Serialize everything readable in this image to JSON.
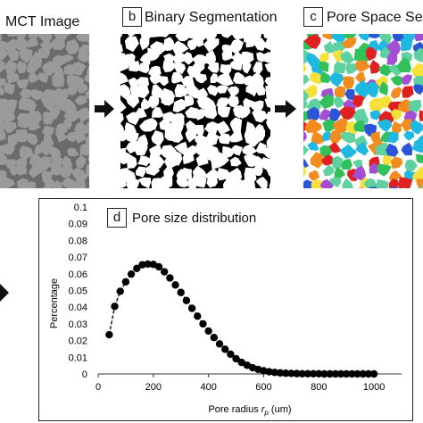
{
  "colors": {
    "micro_bg": "#6b6b6b",
    "micro_grain": "#9a9a9a",
    "binary_bg": "#000000",
    "binary_grain": "#ffffff",
    "pore_palette": [
      "#e02020",
      "#f5e13a",
      "#2a55d6",
      "#1fb8e0",
      "#32c05a",
      "#f28c1e",
      "#a44fd3",
      "#5fd1a0"
    ]
  },
  "panels": {
    "a": {
      "title": "MCT Image"
    },
    "b": {
      "letter": "b",
      "title": "Binary Segmentation"
    },
    "c": {
      "letter": "c",
      "title": "Pore Space Seg"
    }
  },
  "icons": {
    "arrow_ab": "arrow-right-icon",
    "arrow_bc": "arrow-right-icon",
    "arrow_d": "arrow-right-icon"
  },
  "chart_data": {
    "type": "line",
    "letter": "d",
    "title": "Pore size distribution",
    "xlabel_main": "Pore radius ",
    "xlabel_var": "r",
    "xlabel_sub": "p",
    "xlabel_unit": " (um)",
    "ylabel": "Percentage",
    "xlim": [
      0,
      1100
    ],
    "ylim": [
      0,
      0.1
    ],
    "xticks": [
      0,
      200,
      400,
      600,
      800,
      1000
    ],
    "yticks": [
      0,
      0.01,
      0.02,
      0.03,
      0.04,
      0.05,
      0.06,
      0.07,
      0.08,
      0.09,
      0.1
    ],
    "ytick_labels": [
      "0",
      "0.01",
      "0.02",
      "0.03",
      "0.04",
      "0.05",
      "0.06",
      "0.07",
      "0.08",
      "0.09",
      "0.1"
    ],
    "series": [
      {
        "x": [
          40,
          60,
          80,
          100,
          120,
          140,
          160,
          180,
          200,
          220,
          240,
          260,
          280,
          300,
          320,
          340,
          360,
          380,
          400,
          420,
          440,
          460,
          480,
          500,
          520,
          540,
          560,
          580,
          600,
          620,
          640,
          660,
          680,
          700,
          720,
          740,
          760,
          780,
          800,
          820,
          840,
          860,
          880,
          900,
          920,
          940,
          960,
          980,
          1000
        ],
        "y": [
          0.0235,
          0.0405,
          0.0495,
          0.0552,
          0.0598,
          0.0632,
          0.0654,
          0.0658,
          0.0656,
          0.0642,
          0.0612,
          0.0575,
          0.0533,
          0.0488,
          0.044,
          0.0393,
          0.0346,
          0.03,
          0.0257,
          0.0218,
          0.018,
          0.0148,
          0.0118,
          0.0091,
          0.0069,
          0.0052,
          0.0037,
          0.0027,
          0.0019,
          0.0013,
          0.0009,
          0.0006,
          0.0004,
          0.0003,
          0.0002,
          0.0001,
          0.0001,
          0.0001,
          0.0001,
          0.0,
          0.0,
          0.0,
          0.0,
          0.0,
          0.0,
          0.0,
          0.0,
          0.0,
          0.0
        ]
      }
    ]
  }
}
